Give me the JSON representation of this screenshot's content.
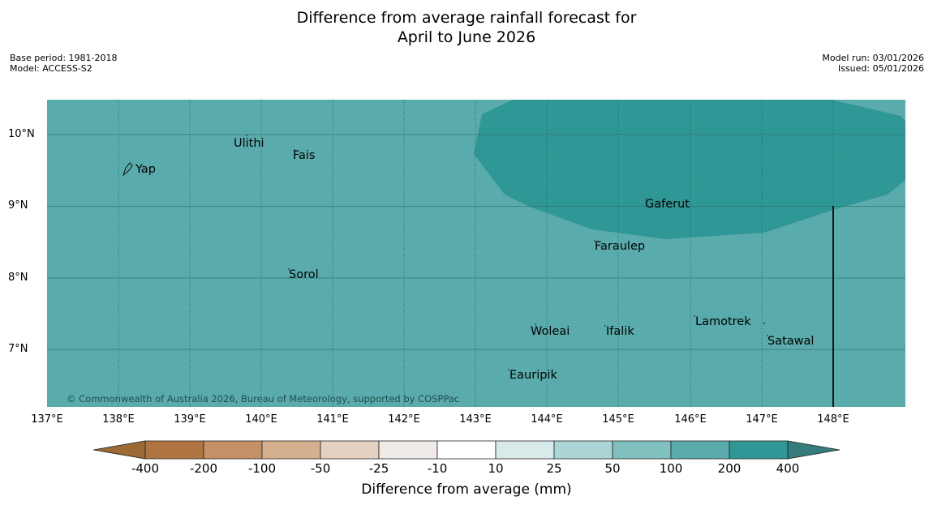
{
  "title": {
    "line1": "Difference from average rainfall forecast for",
    "line2": "April to June 2026"
  },
  "meta_left": {
    "base_period": "Base period: 1981-2018",
    "model": "Model: ACCESS-S2"
  },
  "meta_right": {
    "model_run": "Model run: 03/01/2026",
    "issued": "Issued: 05/01/2026"
  },
  "map": {
    "latitude_labels": [
      "10°N",
      "9°N",
      "8°N",
      "7°N"
    ],
    "longitude_labels": [
      "137°E",
      "138°E",
      "139°E",
      "140°E",
      "141°E",
      "142°E",
      "143°E",
      "144°E",
      "145°E",
      "146°E",
      "147°E",
      "148°E"
    ],
    "places": [
      "Ulithi",
      "Fais",
      "Yap",
      "Gaferut",
      "Faraulep",
      "Sorol",
      "Lamotrek",
      "Woleai",
      "Ifalik",
      "Satawal",
      "Eauripik"
    ],
    "copyright": "© Commonwealth of Australia 2026, Bureau of Meteorology, supported by COSPPac",
    "background_color": "#5aabab",
    "wet_region_color": "#2f9795"
  },
  "colorbar": {
    "title": "Difference from average (mm)",
    "labels": [
      "-400",
      "-200",
      "-100",
      "-50",
      "-25",
      "-10",
      "10",
      "25",
      "50",
      "100",
      "200",
      "400"
    ],
    "colors": [
      "#9b6a35",
      "#b07440",
      "#c49066",
      "#d4b08e",
      "#e5d1c0",
      "#f0ebe6",
      "#ffffff",
      "#d8ebea",
      "#acd6d5",
      "#80c0bf",
      "#5aabab",
      "#2f9795",
      "#357d7c"
    ]
  }
}
